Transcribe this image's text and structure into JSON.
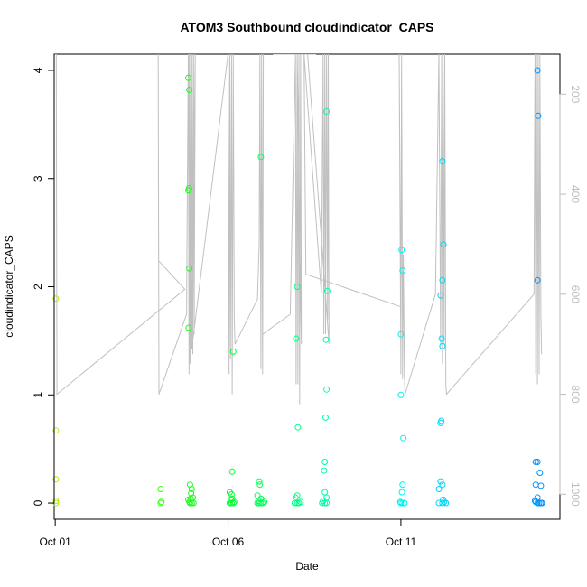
{
  "chart_data": {
    "type": "scatter",
    "title": "ATOM3 Southbound cloudindicator_CAPS",
    "xlabel": "Date",
    "ylabel": "cloudindicator_CAPS",
    "x_ticks": [
      {
        "day": 1,
        "label": "Oct 01"
      },
      {
        "day": 6,
        "label": "Oct 06"
      },
      {
        "day": 11,
        "label": "Oct 11"
      }
    ],
    "y_ticks": [
      0,
      1,
      2,
      3,
      4
    ],
    "y_right_ticks": [
      200,
      400,
      600,
      800,
      1000
    ],
    "xlim": [
      0.97,
      15.6
    ],
    "ylim": [
      -0.15,
      4.15
    ],
    "y_right_lim": [
      1050,
      120
    ],
    "grid": false,
    "legend": "none",
    "point_color_scale": [
      "#b0f000",
      "#00ff20",
      "#00ffee",
      "#0090ff"
    ],
    "series": [
      {
        "marker": "open-circle",
        "points": [
          [
            1.02,
            1.89
          ],
          [
            1.02,
            0.67
          ],
          [
            1.02,
            0.22
          ],
          [
            1.02,
            0.02
          ],
          [
            1.02,
            0.0
          ],
          [
            4.05,
            0.13
          ],
          [
            4.05,
            0.0
          ],
          [
            4.07,
            0.01
          ],
          [
            4.85,
            3.93
          ],
          [
            4.88,
            3.82
          ],
          [
            4.87,
            2.91
          ],
          [
            4.85,
            2.89
          ],
          [
            4.88,
            2.17
          ],
          [
            4.86,
            1.62
          ],
          [
            4.9,
            0.17
          ],
          [
            4.95,
            0.13
          ],
          [
            4.93,
            0.09
          ],
          [
            4.98,
            0.05
          ],
          [
            4.85,
            0.03
          ],
          [
            4.88,
            0.01
          ],
          [
            4.9,
            0.0
          ],
          [
            4.95,
            0.0
          ],
          [
            5.0,
            0.0
          ],
          [
            4.92,
            0.04
          ],
          [
            6.05,
            0.1
          ],
          [
            6.1,
            0.08
          ],
          [
            6.12,
            0.29
          ],
          [
            6.15,
            1.4
          ],
          [
            6.08,
            0.03
          ],
          [
            6.05,
            0.0
          ],
          [
            6.1,
            0.0
          ],
          [
            6.15,
            0.0
          ],
          [
            6.18,
            0.01
          ],
          [
            6.12,
            0.04
          ],
          [
            6.95,
            3.2
          ],
          [
            6.9,
            0.2
          ],
          [
            6.92,
            0.17
          ],
          [
            6.85,
            0.07
          ],
          [
            6.95,
            0.04
          ],
          [
            6.88,
            0.02
          ],
          [
            6.9,
            0.0
          ],
          [
            6.95,
            0.0
          ],
          [
            7.0,
            0.0
          ],
          [
            7.05,
            0.01
          ],
          [
            6.85,
            0.0
          ],
          [
            8.0,
            2.0
          ],
          [
            7.97,
            1.52
          ],
          [
            8.02,
            0.7
          ],
          [
            8.0,
            0.07
          ],
          [
            7.95,
            0.05
          ],
          [
            8.0,
            0.0
          ],
          [
            8.05,
            0.0
          ],
          [
            8.1,
            0.01
          ],
          [
            7.93,
            0.0
          ],
          [
            8.85,
            3.62
          ],
          [
            8.87,
            1.96
          ],
          [
            8.83,
            1.51
          ],
          [
            8.85,
            1.05
          ],
          [
            8.82,
            0.79
          ],
          [
            8.8,
            0.38
          ],
          [
            8.78,
            0.3
          ],
          [
            8.8,
            0.1
          ],
          [
            8.85,
            0.05
          ],
          [
            8.75,
            0.02
          ],
          [
            8.8,
            0.0
          ],
          [
            8.85,
            0.0
          ],
          [
            8.72,
            0.0
          ],
          [
            11.02,
            2.34
          ],
          [
            11.05,
            2.15
          ],
          [
            11.0,
            1.56
          ],
          [
            11.0,
            1.0
          ],
          [
            11.07,
            0.6
          ],
          [
            11.05,
            0.17
          ],
          [
            11.03,
            0.1
          ],
          [
            11.0,
            0.0
          ],
          [
            11.05,
            0.0
          ],
          [
            11.1,
            0.0
          ],
          [
            10.98,
            0.01
          ],
          [
            12.2,
            3.16
          ],
          [
            12.23,
            2.39
          ],
          [
            12.2,
            2.06
          ],
          [
            12.15,
            1.92
          ],
          [
            12.18,
            1.52
          ],
          [
            12.2,
            1.45
          ],
          [
            12.17,
            0.76
          ],
          [
            12.15,
            0.74
          ],
          [
            12.15,
            0.2
          ],
          [
            12.2,
            0.17
          ],
          [
            12.1,
            0.13
          ],
          [
            12.22,
            0.03
          ],
          [
            12.1,
            0.0
          ],
          [
            12.2,
            0.0
          ],
          [
            12.25,
            0.01
          ],
          [
            12.3,
            0.0
          ],
          [
            14.95,
            4.0
          ],
          [
            14.97,
            3.58
          ],
          [
            14.95,
            2.06
          ],
          [
            14.9,
            0.38
          ],
          [
            14.95,
            0.38
          ],
          [
            15.02,
            0.28
          ],
          [
            14.9,
            0.17
          ],
          [
            15.05,
            0.16
          ],
          [
            14.95,
            0.05
          ],
          [
            14.9,
            0.01
          ],
          [
            14.95,
            0.0
          ],
          [
            15.0,
            0.0
          ],
          [
            15.05,
            0.0
          ],
          [
            15.08,
            0.0
          ],
          [
            14.88,
            0.02
          ]
        ]
      }
    ],
    "line_series": {
      "color": "#c0c0c0",
      "axis": "right",
      "points": [
        [
          1.0,
          120
        ],
        [
          1.03,
          120
        ],
        [
          1.05,
          800
        ],
        [
          4.75,
          590
        ],
        [
          3.99,
          533
        ],
        [
          3.98,
          120
        ],
        [
          4.0,
          800
        ],
        [
          4.8,
          640
        ],
        [
          4.82,
          400
        ],
        [
          4.85,
          120
        ],
        [
          4.87,
          760
        ],
        [
          4.88,
          120
        ],
        [
          4.9,
          740
        ],
        [
          4.92,
          120
        ],
        [
          4.94,
          700
        ],
        [
          4.96,
          120
        ],
        [
          4.98,
          720
        ],
        [
          5.0,
          120
        ],
        [
          5.02,
          680
        ],
        [
          5.05,
          120
        ],
        [
          4.95,
          710
        ],
        [
          6.0,
          120
        ],
        [
          6.03,
          760
        ],
        [
          6.05,
          120
        ],
        [
          6.07,
          730
        ],
        [
          6.1,
          120
        ],
        [
          6.12,
          800
        ],
        [
          6.15,
          120
        ],
        [
          6.18,
          650
        ],
        [
          6.2,
          700
        ],
        [
          6.85,
          610
        ],
        [
          6.9,
          500
        ],
        [
          6.92,
          120
        ],
        [
          6.95,
          750
        ],
        [
          6.97,
          120
        ],
        [
          7.0,
          760
        ],
        [
          7.02,
          120
        ],
        [
          7.0,
          680
        ],
        [
          7.8,
          640
        ],
        [
          7.95,
          120
        ],
        [
          7.97,
          780
        ],
        [
          8.0,
          120
        ],
        [
          8.02,
          780
        ],
        [
          8.05,
          120
        ],
        [
          8.07,
          820
        ],
        [
          8.1,
          120
        ],
        [
          8.12,
          700
        ],
        [
          8.0,
          120
        ],
        [
          7.3,
          120
        ],
        [
          8.2,
          120
        ],
        [
          8.7,
          600
        ],
        [
          8.75,
          120
        ],
        [
          8.77,
          680
        ],
        [
          8.8,
          120
        ],
        [
          8.82,
          680
        ],
        [
          8.85,
          120
        ],
        [
          8.88,
          650
        ],
        [
          8.9,
          120
        ],
        [
          8.92,
          700
        ],
        [
          8.8,
          580
        ],
        [
          8.3,
          120
        ],
        [
          8.55,
          120
        ],
        [
          8.3,
          120
        ],
        [
          8.2,
          120
        ],
        [
          8.25,
          560
        ],
        [
          11.0,
          625
        ],
        [
          10.95,
          120
        ],
        [
          11.0,
          760
        ],
        [
          11.02,
          120
        ],
        [
          11.05,
          770
        ],
        [
          11.07,
          520
        ],
        [
          11.1,
          760
        ],
        [
          11.12,
          800
        ],
        [
          12.0,
          600
        ],
        [
          12.1,
          120
        ],
        [
          12.15,
          700
        ],
        [
          12.18,
          120
        ],
        [
          12.2,
          740
        ],
        [
          12.22,
          120
        ],
        [
          12.25,
          700
        ],
        [
          12.27,
          120
        ],
        [
          12.3,
          780
        ],
        [
          12.32,
          800
        ],
        [
          14.85,
          600
        ],
        [
          14.88,
          120
        ],
        [
          14.9,
          760
        ],
        [
          14.92,
          120
        ],
        [
          14.95,
          780
        ],
        [
          14.97,
          120
        ],
        [
          15.0,
          760
        ],
        [
          15.02,
          120
        ],
        [
          15.05,
          640
        ],
        [
          15.07,
          720
        ]
      ]
    }
  }
}
